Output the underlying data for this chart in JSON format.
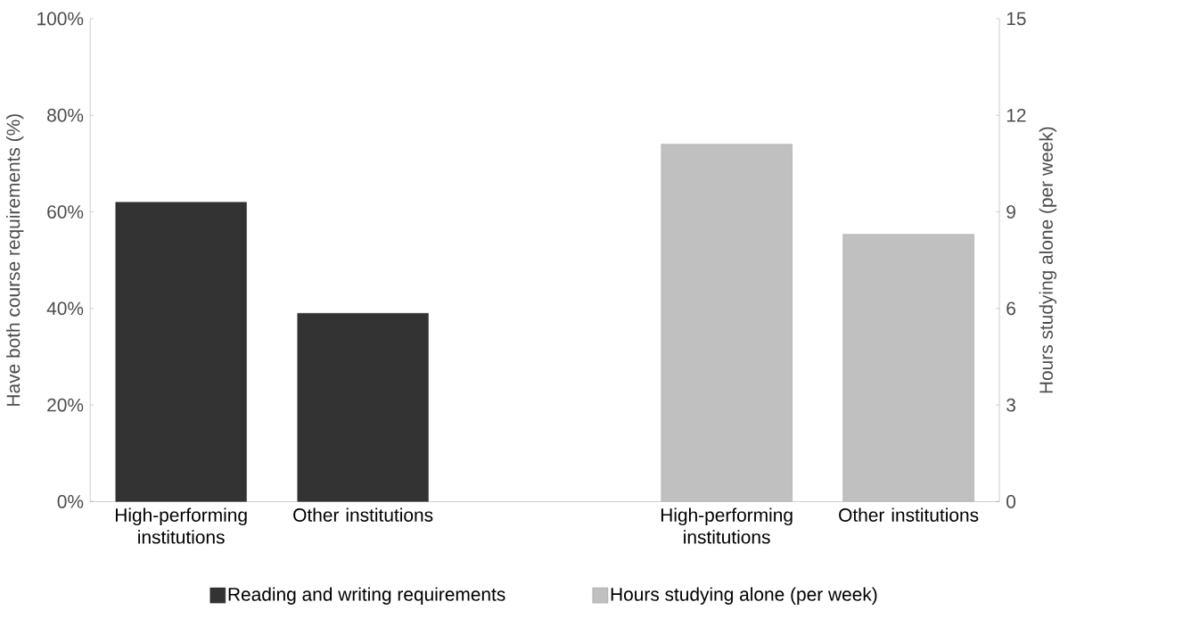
{
  "chart_data": {
    "type": "bar",
    "categories": [
      "High-performing institutions",
      "Other institutions",
      null,
      "High-performing institutions",
      "Other institutions"
    ],
    "ylabel": "Have both course requirements (%)",
    "y2label": "Hours studying alone (per week)",
    "series": [
      {
        "name": "Reading and writing requirements",
        "color": "#333333",
        "values": [
          62,
          39,
          null,
          null,
          null
        ]
      },
      {
        "name": "Hours studying alone (per week)",
        "color": "#c0c0c0",
        "axis": "y2",
        "values": [
          null,
          null,
          null,
          11.1,
          8.3
        ]
      }
    ],
    "ylim": [
      0,
      100
    ],
    "yticks": [
      {
        "value": 0,
        "label": "0%"
      },
      {
        "value": 20,
        "label": "20%"
      },
      {
        "value": 40,
        "label": "40%"
      },
      {
        "value": 60,
        "label": "60%"
      },
      {
        "value": 80,
        "label": "80%"
      },
      {
        "value": 100,
        "label": "100%"
      }
    ],
    "y2lim": [
      0,
      15
    ],
    "y2ticks": [
      0,
      3,
      6,
      9,
      12,
      15
    ],
    "legend": "bottom",
    "grid": false
  }
}
